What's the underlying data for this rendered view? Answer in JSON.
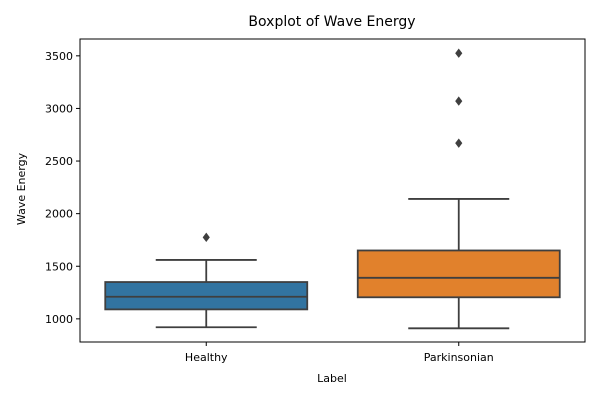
{
  "chart_data": {
    "type": "box",
    "title": "Boxplot of Wave Energy",
    "xlabel": "Label",
    "ylabel": "Wave Energy",
    "categories": [
      "Healthy",
      "Parkinsonian"
    ],
    "ylim": [
      780,
      3660
    ],
    "yticks": [
      1000,
      1500,
      2000,
      2500,
      3000,
      3500
    ],
    "grid": false,
    "boxes": [
      {
        "category": "Healthy",
        "color": "#3274a1",
        "whisker_low": 920,
        "q1": 1090,
        "median": 1210,
        "q3": 1350,
        "whisker_high": 1560,
        "outliers": [
          1775
        ]
      },
      {
        "category": "Parkinsonian",
        "color": "#e1812c",
        "whisker_low": 910,
        "q1": 1205,
        "median": 1390,
        "q3": 1650,
        "whisker_high": 2140,
        "outliers": [
          2670,
          3070,
          3525
        ]
      }
    ]
  }
}
